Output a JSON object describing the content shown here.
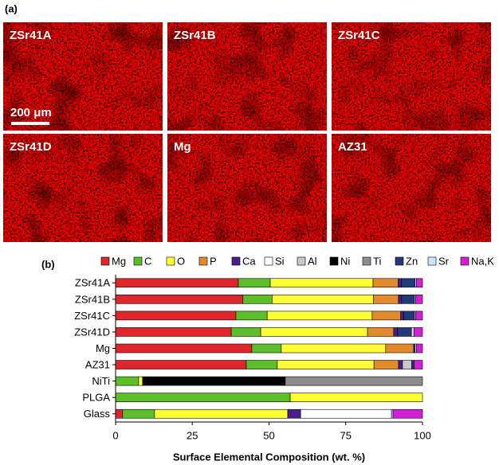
{
  "figure_a": {
    "panel_label": "(a)",
    "images": [
      {
        "label": "ZSr41A"
      },
      {
        "label": "ZSr41B"
      },
      {
        "label": "ZSr41C"
      },
      {
        "label": "ZSr41D"
      },
      {
        "label": "Mg"
      },
      {
        "label": "AZ31"
      }
    ],
    "scale_bar": "200 μm"
  },
  "chart_data": {
    "type": "stacked-bar-horizontal",
    "panel_label": "(b)",
    "xlabel": "Surface Elemental Composition (wt. %)",
    "categories": [
      "ZSr41A",
      "ZSr41B",
      "ZSr41C",
      "ZSr41D",
      "Mg",
      "AZ31",
      "NiTi",
      "PLGA",
      "Glass"
    ],
    "xlim": [
      0,
      100
    ],
    "xticks": [
      0,
      25,
      50,
      75,
      100
    ],
    "legend": "top",
    "series": [
      {
        "name": "Mg",
        "color": "#e0262b",
        "values": [
          40,
          41.5,
          39.2,
          37.7,
          44.4,
          42.6,
          0,
          0,
          2.3
        ]
      },
      {
        "name": "C",
        "color": "#5cbf2a",
        "values": [
          10.4,
          9.5,
          10.2,
          9.6,
          9.6,
          10.1,
          7.5,
          56.9,
          10.4
        ]
      },
      {
        "name": "O",
        "color": "#ffff33",
        "values": [
          33.5,
          33,
          34.2,
          34.8,
          34,
          31.5,
          1.3,
          43.1,
          43.4
        ]
      },
      {
        "name": "P",
        "color": "#e38b2c",
        "values": [
          8.2,
          8.2,
          9.3,
          8.5,
          9.1,
          8,
          0,
          0,
          0
        ]
      },
      {
        "name": "Ca",
        "color": "#4a1f8c",
        "values": [
          1,
          1,
          1,
          1.2,
          0,
          1.3,
          0,
          0,
          4.2
        ]
      },
      {
        "name": "Si",
        "color": "#ffffff",
        "values": [
          0,
          0,
          0,
          0,
          0,
          0,
          0,
          0,
          29.6
        ]
      },
      {
        "name": "Al",
        "color": "#c8c8c8",
        "values": [
          0,
          0,
          0,
          0,
          0,
          3,
          0,
          0,
          0
        ]
      },
      {
        "name": "Ni",
        "color": "#000000",
        "values": [
          0,
          0,
          0,
          0,
          0,
          0,
          46.5,
          0,
          0
        ]
      },
      {
        "name": "Ti",
        "color": "#8c8c8c",
        "values": [
          0,
          0,
          0,
          0,
          0,
          0,
          44.7,
          0,
          0
        ]
      },
      {
        "name": "Zn",
        "color": "#24397a",
        "values": [
          4.5,
          4.2,
          3.5,
          4.6,
          0.5,
          0.8,
          0,
          0,
          0
        ]
      },
      {
        "name": "Sr",
        "color": "#cfe6f7",
        "values": [
          0.4,
          0.4,
          0.4,
          0.8,
          0.4,
          0,
          0,
          0,
          0.5
        ]
      },
      {
        "name": "Na,K",
        "color": "#d41fd8",
        "values": [
          2,
          2.2,
          2.2,
          2.8,
          2,
          2.7,
          0,
          0,
          9.6
        ]
      }
    ]
  }
}
